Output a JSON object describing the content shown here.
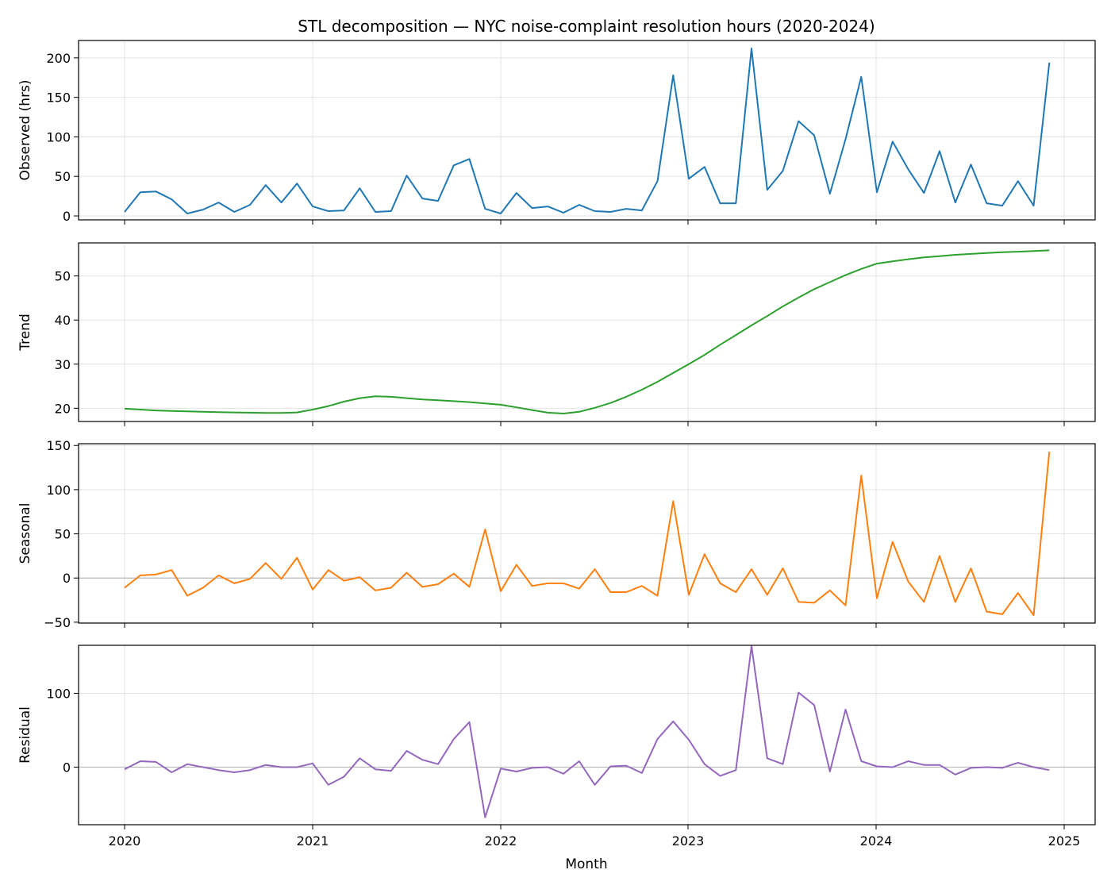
{
  "chart_data": {
    "type": "line",
    "title": "STL decomposition — NYC noise-complaint resolution hours (2020-2024)",
    "xlabel": "Month",
    "x_start": "2020-01",
    "x_ticks": [
      "2020",
      "2021",
      "2022",
      "2023",
      "2024",
      "2025"
    ],
    "grid": true,
    "panels": [
      {
        "id": "observed",
        "ylabel": "Observed (hrs)",
        "color": "#1f77b4",
        "ylim": [
          -5,
          222
        ],
        "yticks": [
          0,
          50,
          100,
          150,
          200
        ],
        "zero_line": false,
        "values": [
          5,
          30,
          31,
          21,
          3,
          8,
          17,
          5,
          14,
          39,
          17,
          41,
          12,
          6,
          7,
          35,
          5,
          6,
          51,
          22,
          19,
          64,
          72,
          9,
          3,
          29,
          10,
          12,
          4,
          14,
          6,
          5,
          9,
          7,
          44,
          178,
          47,
          62,
          16,
          16,
          212,
          33,
          57,
          120,
          102,
          28,
          97,
          176,
          30,
          94,
          59,
          29,
          82,
          17,
          65,
          16,
          13,
          44,
          13,
          194
        ]
      },
      {
        "id": "trend",
        "ylabel": "Trend",
        "color": "#2ca02c",
        "ylim": [
          17,
          57.5
        ],
        "yticks": [
          20,
          30,
          40,
          50
        ],
        "zero_line": false,
        "values": [
          19.9,
          19.7,
          19.5,
          19.4,
          19.3,
          19.2,
          19.1,
          19.05,
          19.0,
          18.95,
          18.95,
          19.05,
          19.7,
          20.5,
          21.5,
          22.3,
          22.7,
          22.6,
          22.3,
          22.0,
          21.8,
          21.6,
          21.4,
          21.1,
          20.8,
          20.2,
          19.6,
          19.0,
          18.8,
          19.2,
          20.1,
          21.2,
          22.6,
          24.2,
          26.0,
          28.0,
          30.0,
          32.1,
          34.4,
          36.6,
          38.8,
          40.9,
          43.1,
          45.1,
          47.0,
          48.6,
          50.2,
          51.6,
          52.8,
          53.3,
          53.8,
          54.2,
          54.5,
          54.8,
          55.0,
          55.2,
          55.4,
          55.5,
          55.65,
          55.8
        ]
      },
      {
        "id": "seasonal",
        "ylabel": "Seasonal",
        "color": "#ff7f0e",
        "ylim": [
          -51,
          152
        ],
        "yticks": [
          -50,
          0,
          50,
          100,
          150
        ],
        "zero_line": true,
        "values": [
          -11,
          3,
          4,
          9,
          -20,
          -11,
          3,
          -6,
          -1,
          17,
          -1,
          23,
          -13,
          9,
          -3,
          1,
          -14,
          -11,
          6,
          -10,
          -7,
          5,
          -10,
          55,
          -15,
          15,
          -9,
          -6,
          -6,
          -12,
          10,
          -16,
          -16,
          -9,
          -20,
          87,
          -19,
          27,
          -6,
          -16,
          10,
          -19,
          11,
          -27,
          -28,
          -14,
          -31,
          116,
          -23,
          41,
          -4,
          -27,
          25,
          -27,
          11,
          -38,
          -41,
          -17,
          -42,
          143
        ]
      },
      {
        "id": "residual",
        "ylabel": "Residual",
        "color": "#9467bd",
        "ylim": [
          -78,
          165
        ],
        "yticks": [
          0,
          100
        ],
        "zero_line": true,
        "values": [
          -3,
          8,
          7,
          -7,
          4,
          0,
          -4,
          -7,
          -4,
          3,
          0,
          0,
          5,
          -24,
          -13,
          12,
          -3,
          -5,
          22,
          10,
          4,
          38,
          61,
          -68,
          -2,
          -6,
          -1,
          0,
          -9,
          8,
          -24,
          1,
          2,
          -8,
          38,
          62,
          37,
          4,
          -12,
          -4,
          164,
          12,
          4,
          101,
          84,
          -6,
          78,
          8,
          1,
          0,
          8,
          3,
          3,
          -10,
          -1,
          0,
          -1,
          6,
          0,
          -4
        ]
      }
    ]
  }
}
